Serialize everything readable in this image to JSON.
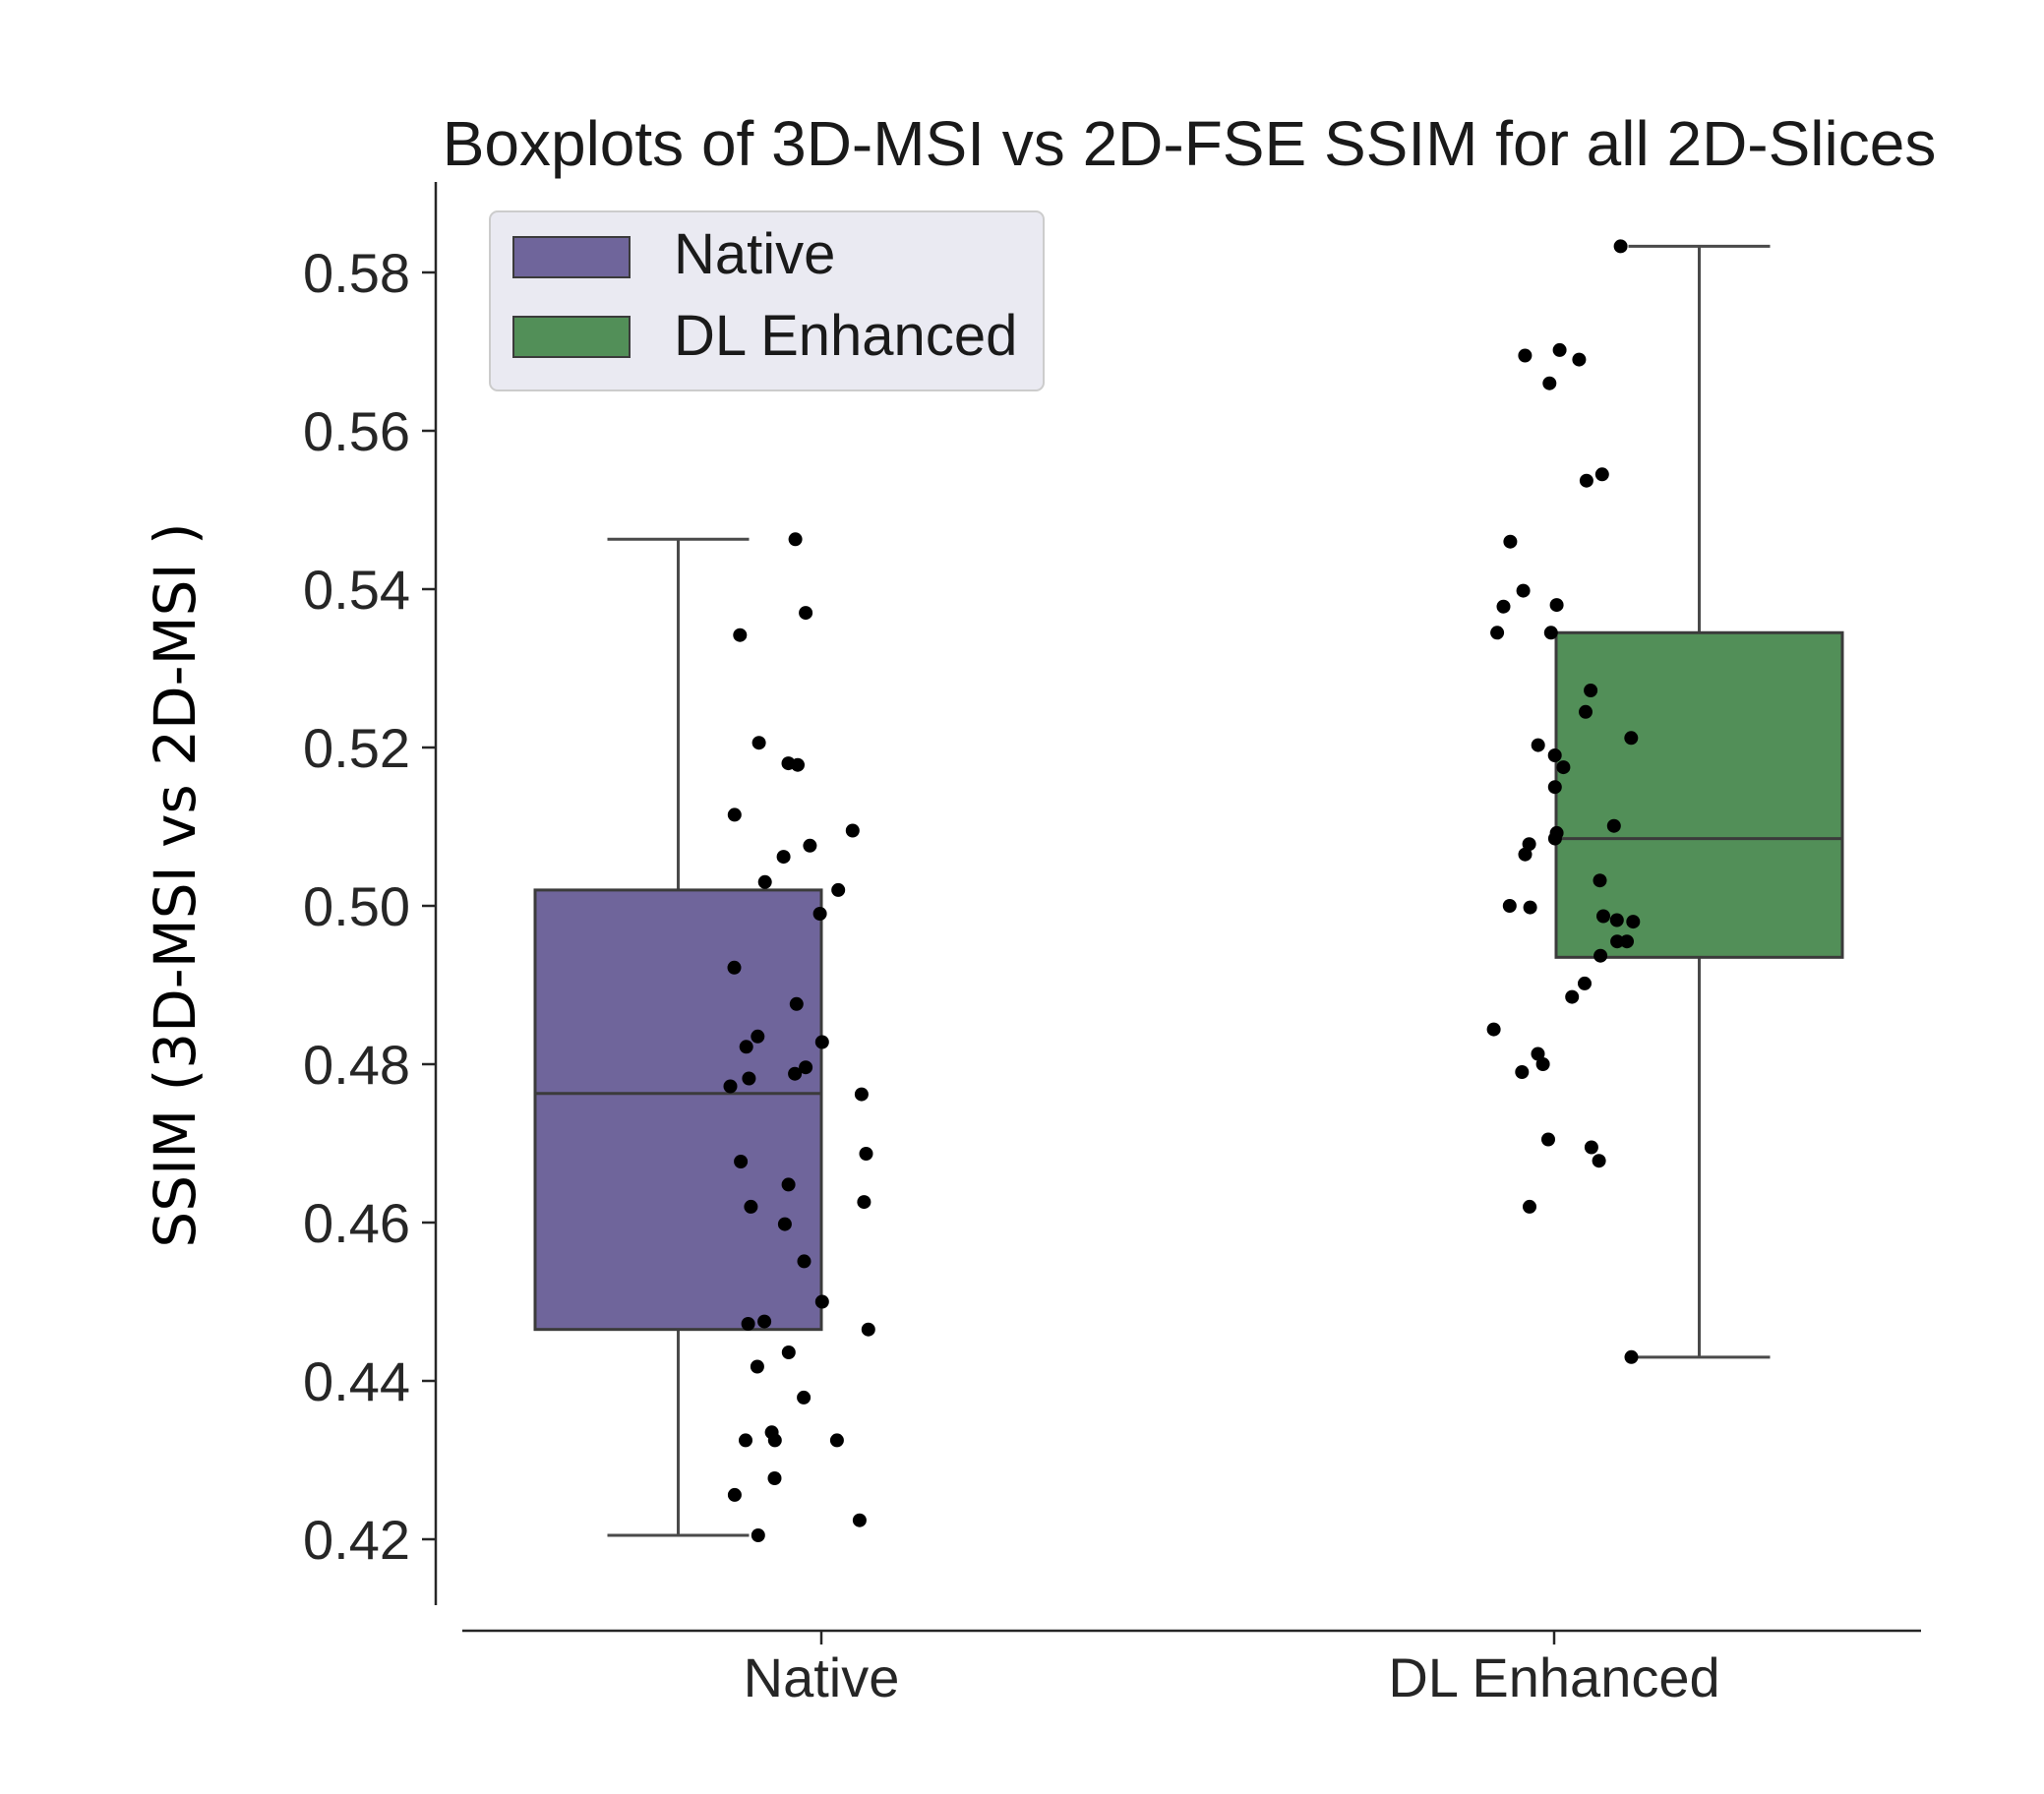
{
  "chart_data": {
    "type": "box",
    "title": "Boxplots of 3D-MSI vs 2D-FSE SSIM for all 2D-Slices",
    "xlabel": "",
    "ylabel": "SSIM (3D-MSI vs 2D-MSI )",
    "ylim": [
      0.4105,
      0.592
    ],
    "yticks": [
      0.42,
      0.44,
      0.46,
      0.48,
      0.5,
      0.52,
      0.54,
      0.56,
      0.58
    ],
    "ytick_labels": [
      "0.42",
      "0.44",
      "0.46",
      "0.48",
      "0.50",
      "0.52",
      "0.54",
      "0.56",
      "0.58"
    ],
    "categories": [
      "Native",
      "DL Enhanced"
    ],
    "legend": {
      "position": "upper-left",
      "entries": [
        {
          "label": "Native",
          "color": "#6f659b"
        },
        {
          "label": "DL Enhanced",
          "color": "#528f58"
        }
      ]
    },
    "series": [
      {
        "name": "Native",
        "color": "#6f659b",
        "whisker_low": 0.4205,
        "q1": 0.4465,
        "median": 0.4763,
        "q3": 0.502,
        "whisker_high": 0.5463,
        "points": [
          0.5463,
          0.537,
          0.5342,
          0.5206,
          0.518,
          0.5178,
          0.5115,
          0.5095,
          0.5076,
          0.5062,
          0.503,
          0.502,
          0.499,
          0.4922,
          0.4876,
          0.4835,
          0.4828,
          0.4822,
          0.4796,
          0.4788,
          0.4782,
          0.4772,
          0.4762,
          0.4687,
          0.4677,
          0.4648,
          0.4626,
          0.462,
          0.4598,
          0.4551,
          0.45,
          0.4475,
          0.4472,
          0.4465,
          0.4436,
          0.4418,
          0.4379,
          0.4335,
          0.4325,
          0.4325,
          0.4325,
          0.4277,
          0.4256,
          0.4224,
          0.4205
        ]
      },
      {
        "name": "DL Enhanced",
        "color": "#528f58",
        "whisker_low": 0.443,
        "q1": 0.4935,
        "median": 0.5085,
        "q3": 0.5345,
        "whisker_high": 0.5833,
        "points": [
          0.5833,
          0.5702,
          0.5695,
          0.569,
          0.566,
          0.5545,
          0.5537,
          0.546,
          0.5398,
          0.538,
          0.5378,
          0.5345,
          0.5345,
          0.5272,
          0.5245,
          0.5212,
          0.5203,
          0.519,
          0.5175,
          0.515,
          0.5101,
          0.5092,
          0.5085,
          0.5078,
          0.5065,
          0.5032,
          0.5,
          0.4998,
          0.4987,
          0.4982,
          0.498,
          0.4955,
          0.4955,
          0.4937,
          0.4902,
          0.4885,
          0.4844,
          0.4813,
          0.48,
          0.479,
          0.4705,
          0.4695,
          0.4678,
          0.462,
          0.443
        ]
      }
    ]
  }
}
